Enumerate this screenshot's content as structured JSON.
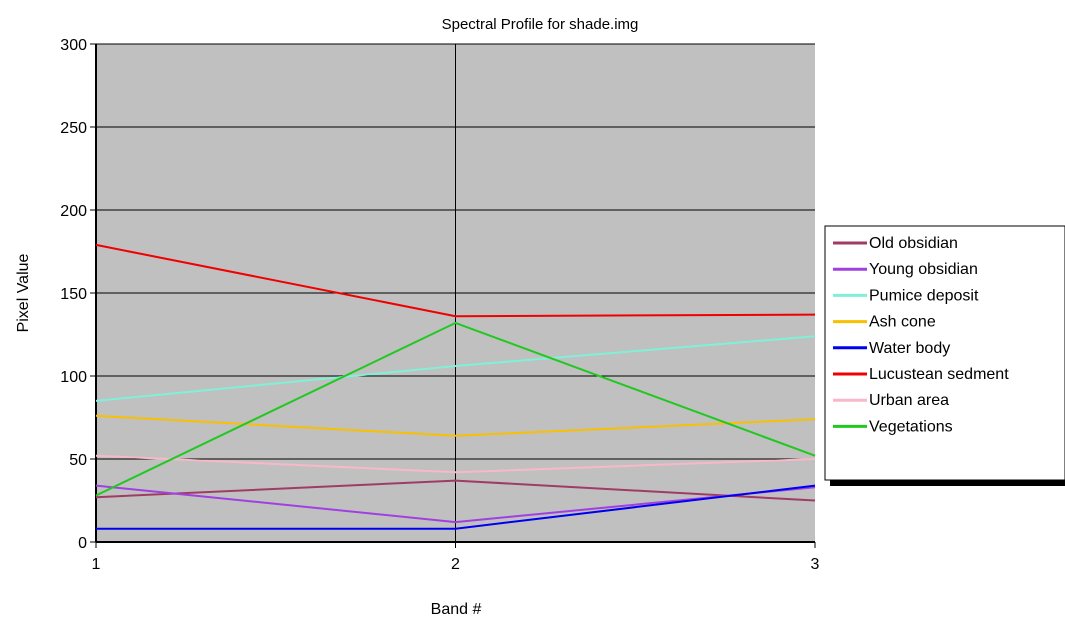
{
  "chart_data": {
    "type": "line",
    "title": "Spectral Profile for shade.img",
    "xlabel": "Band #",
    "ylabel": "Pixel Value",
    "x": [
      1,
      2,
      3
    ],
    "x_tick_labels": [
      "1",
      "2",
      "3"
    ],
    "xlim": [
      1,
      3
    ],
    "ylim": [
      0,
      300
    ],
    "y_ticks": [
      0,
      50,
      100,
      150,
      200,
      250,
      300
    ],
    "y_tick_labels": [
      "0",
      "50",
      "100",
      "150",
      "200",
      "250",
      "300"
    ],
    "grid": true,
    "plot_background": "#c0c0c0",
    "legend_position": "right",
    "series": [
      {
        "name": "Old obsidian",
        "color": "#a03c64",
        "values": [
          27,
          37,
          25
        ]
      },
      {
        "name": "Young obsidian",
        "color": "#a040e0",
        "values": [
          34,
          12,
          33
        ]
      },
      {
        "name": "Pumice deposit",
        "color": "#80f0d8",
        "values": [
          85,
          106,
          124
        ]
      },
      {
        "name": "Ash cone",
        "color": "#f8c000",
        "values": [
          76,
          64,
          74
        ]
      },
      {
        "name": "Water body",
        "color": "#0000f0",
        "values": [
          8,
          8,
          34
        ]
      },
      {
        "name": "Lucustean sedment",
        "color": "#f00000",
        "values": [
          179,
          136,
          137
        ]
      },
      {
        "name": "Urban area",
        "color": "#f8b8c8",
        "values": [
          52,
          42,
          50
        ]
      },
      {
        "name": "Vegetations",
        "color": "#20c820",
        "values": [
          28,
          132,
          52
        ]
      }
    ]
  }
}
